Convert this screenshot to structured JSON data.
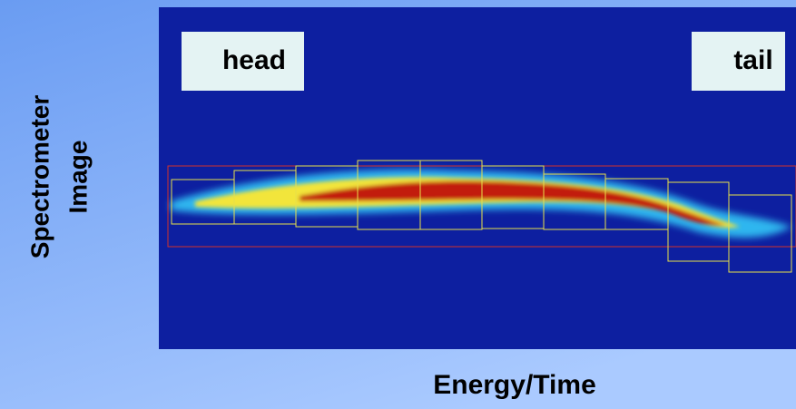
{
  "image": {
    "labels": {
      "head": "head",
      "tail": "tail"
    }
  },
  "axis_labels": {
    "y": [
      "Spectrometer",
      "Image"
    ],
    "x": "Energy/Time"
  }
}
